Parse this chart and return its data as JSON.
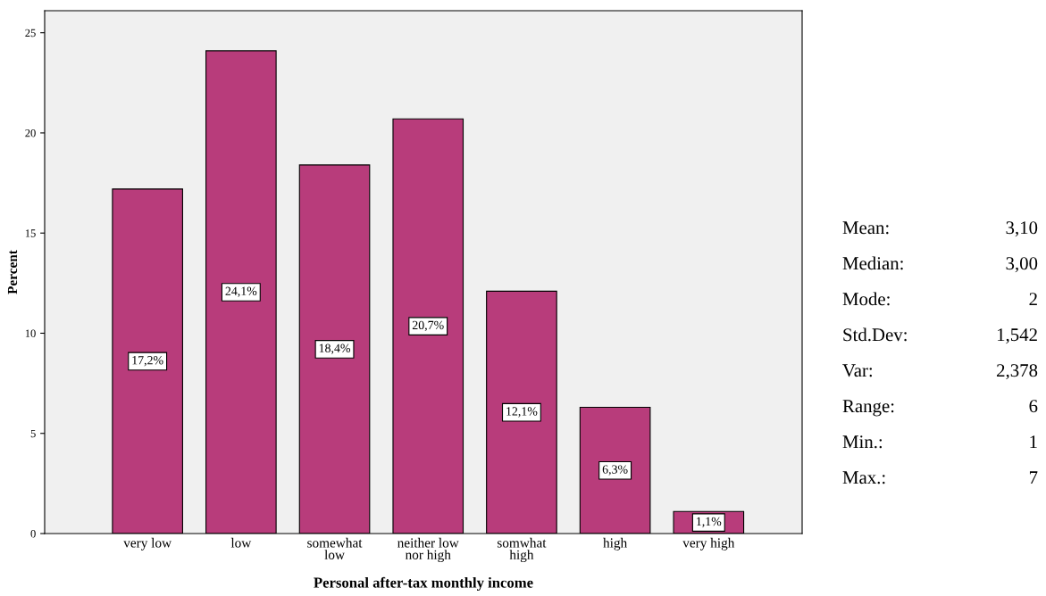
{
  "chart_data": {
    "type": "bar",
    "xlabel": "Personal after-tax monthly income",
    "ylabel": "Percent",
    "categories": [
      "very low",
      "low",
      "somewhat\nlow",
      "neither low\nnor high",
      "somwhat\nhigh",
      "high",
      "very high"
    ],
    "values": [
      17.2,
      24.1,
      18.4,
      20.7,
      12.1,
      6.3,
      1.1
    ],
    "value_labels": [
      "17,2%",
      "24,1%",
      "18,4%",
      "20,7%",
      "12,1%",
      "6,3%",
      "1,1%"
    ],
    "color": "#b83c7b",
    "ylim": [
      0,
      26.1
    ],
    "yticks": [
      0,
      5,
      10,
      15,
      20,
      25
    ],
    "grid": false,
    "legend": false,
    "annotations": [
      "Mean:",
      "3,10",
      "Median:",
      "3,00",
      "Mode:",
      "2",
      "Std.Dev:",
      "1,542",
      "Var:",
      "2,378",
      "Range:",
      "6",
      "Min.:",
      "1",
      "Max.:",
      "7"
    ]
  }
}
